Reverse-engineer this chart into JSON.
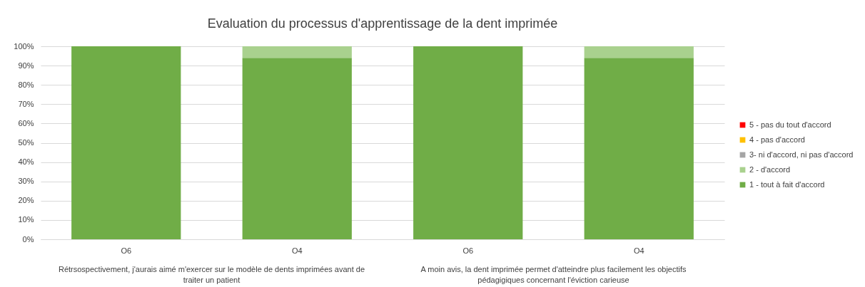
{
  "chart_data": {
    "type": "bar",
    "title": "Evaluation du processus d'apprentissage de la dent imprimée",
    "categories": [
      "O6",
      "O4",
      "O6",
      "O4"
    ],
    "stacked": true,
    "series": [
      {
        "name": "1 - tout à fait d'accord",
        "color": "#70ad47",
        "values": [
          100,
          94,
          100,
          94
        ]
      },
      {
        "name": "2 - d'accord",
        "color": "#a9d18e",
        "values": [
          0,
          6,
          0,
          6
        ]
      },
      {
        "name": "3- ni d'accord, ni pas d'accord",
        "color": "#a5a5a5",
        "values": [
          0,
          0,
          0,
          0
        ]
      },
      {
        "name": "4 - pas d'accord",
        "color": "#ffc000",
        "values": [
          0,
          0,
          0,
          0
        ]
      },
      {
        "name": "5 - pas du tout d'accord",
        "color": "#ff0000",
        "values": [
          0,
          0,
          0,
          0
        ]
      }
    ],
    "ylim": [
      0,
      100
    ],
    "yticks": [
      {
        "value": 0,
        "label": "0%"
      },
      {
        "value": 10,
        "label": "10%"
      },
      {
        "value": 20,
        "label": "20%"
      },
      {
        "value": 30,
        "label": "30%"
      },
      {
        "value": 40,
        "label": "40%"
      },
      {
        "value": 50,
        "label": "50%"
      },
      {
        "value": 60,
        "label": "60%"
      },
      {
        "value": 70,
        "label": "70%"
      },
      {
        "value": 80,
        "label": "80%"
      },
      {
        "value": 90,
        "label": "90%"
      },
      {
        "value": 100,
        "label": "100%"
      }
    ],
    "grid": "y",
    "legend": "right",
    "annotations": [
      "Rétrsospectivement, j'aurais aimé m'exercer sur le modèle de dents imprimées avant de traiter un patient",
      "A moin avis, la dent imprimée permet d'atteindre plus facilement les objectifs pédagigiques concernant l'éviction carieuse"
    ]
  }
}
